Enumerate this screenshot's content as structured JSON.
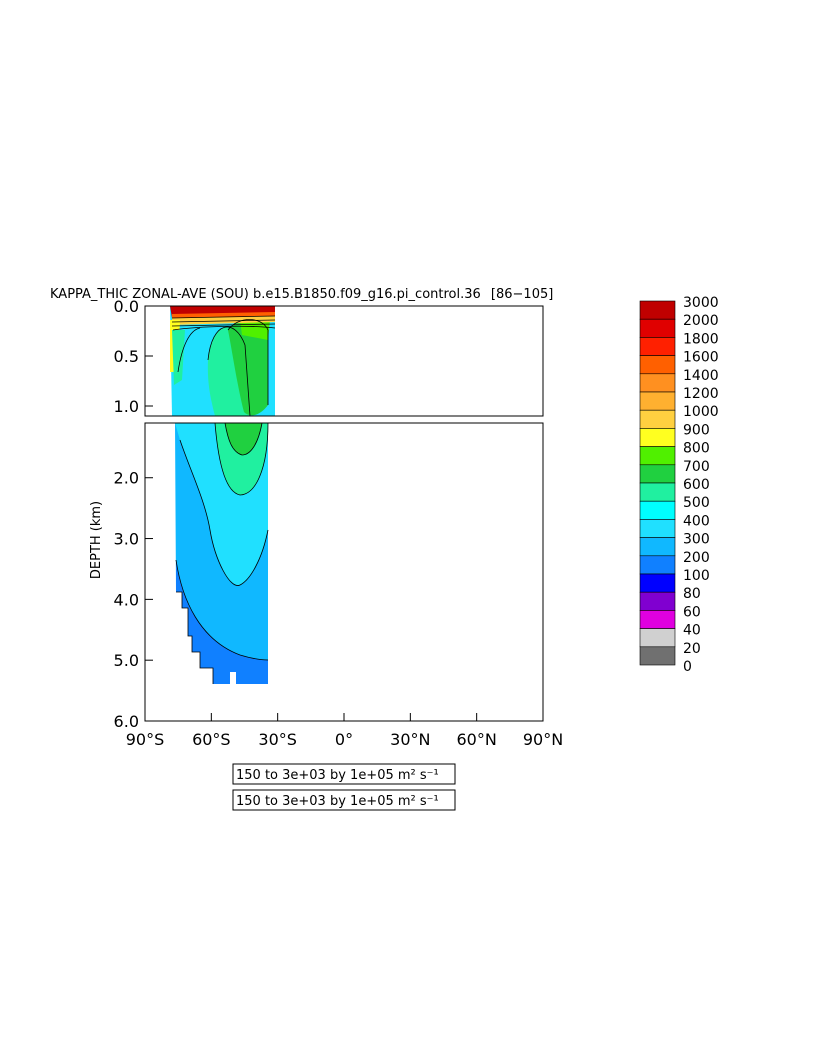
{
  "chart_data": {
    "type": "heatmap",
    "title": "KAPPA_THIC ZONAL-AVE (SOU) b.e15.B1850.f09_g16.pi_control.36",
    "title_years": "86−105",
    "ylabel": "DEPTH (km)",
    "xlim": [
      -90,
      90
    ],
    "x_ticks": [
      {
        "value": -90,
        "label": "90°S"
      },
      {
        "value": -60,
        "label": "60°S"
      },
      {
        "value": -30,
        "label": "30°S"
      },
      {
        "value": 0,
        "label": "0°"
      },
      {
        "value": 30,
        "label": "30°N"
      },
      {
        "value": 60,
        "label": "60°N"
      },
      {
        "value": 90,
        "label": "90°N"
      }
    ],
    "upper_panel": {
      "ylim": [
        0,
        1.1
      ],
      "y_ticks": [
        {
          "value": 0.0,
          "label": "0.0"
        },
        {
          "value": 0.5,
          "label": "0.5"
        },
        {
          "value": 1.0,
          "label": "1.0"
        }
      ]
    },
    "lower_panel": {
      "ylim": [
        1.1,
        6.0
      ],
      "y_ticks": [
        {
          "value": 2.0,
          "label": "2.0"
        },
        {
          "value": 3.0,
          "label": "3.0"
        },
        {
          "value": 4.0,
          "label": "4.0"
        },
        {
          "value": 5.0,
          "label": "5.0"
        },
        {
          "value": 6.0,
          "label": "6.0"
        }
      ]
    },
    "colorbar": {
      "levels": [
        "3000",
        "2000",
        "1800",
        "1600",
        "1400",
        "1200",
        "1000",
        "900",
        "800",
        "700",
        "600",
        "500",
        "400",
        "300",
        "200",
        "100",
        "80",
        "60",
        "40",
        "20",
        "0"
      ],
      "colors": [
        "#c00000",
        "#e00000",
        "#ff2000",
        "#ff6000",
        "#ff9020",
        "#ffb030",
        "#ffd040",
        "#ffff20",
        "#50f000",
        "#20d040",
        "#20f0a0",
        "#00ffff",
        "#20e0ff",
        "#10b8ff",
        "#1080ff",
        "#0000ff",
        "#8000d0",
        "#e000e0",
        "#d0d0d0",
        "#707070"
      ]
    },
    "contour_interval_labels": [
      "150 to 3e+03 by 1e+05 m² s⁻¹",
      "150 to 3e+03 by 1e+05 m² s⁻¹"
    ]
  }
}
